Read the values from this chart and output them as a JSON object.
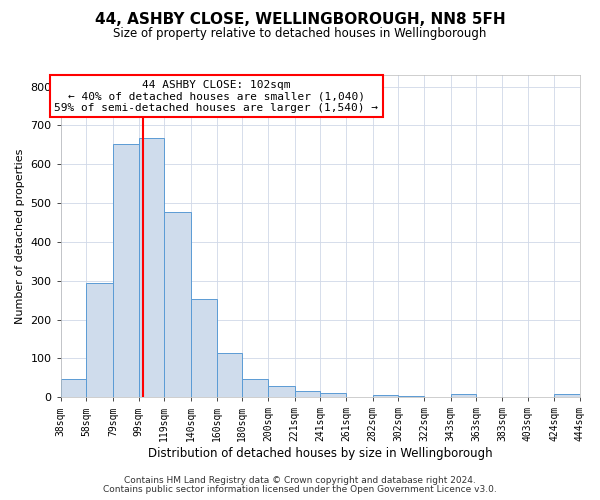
{
  "title": "44, ASHBY CLOSE, WELLINGBOROUGH, NN8 5FH",
  "subtitle": "Size of property relative to detached houses in Wellingborough",
  "xlabel": "Distribution of detached houses by size in Wellingborough",
  "ylabel": "Number of detached properties",
  "footer_line1": "Contains HM Land Registry data © Crown copyright and database right 2024.",
  "footer_line2": "Contains public sector information licensed under the Open Government Licence v3.0.",
  "bin_labels": [
    "38sqm",
    "58sqm",
    "79sqm",
    "99sqm",
    "119sqm",
    "140sqm",
    "160sqm",
    "180sqm",
    "200sqm",
    "221sqm",
    "241sqm",
    "261sqm",
    "282sqm",
    "302sqm",
    "322sqm",
    "343sqm",
    "363sqm",
    "383sqm",
    "403sqm",
    "424sqm",
    "444sqm"
  ],
  "bin_edges": [
    38,
    58,
    79,
    99,
    119,
    140,
    160,
    180,
    200,
    221,
    241,
    261,
    282,
    302,
    322,
    343,
    363,
    383,
    403,
    424,
    444
  ],
  "bar_heights": [
    47,
    293,
    652,
    668,
    478,
    252,
    113,
    48,
    28,
    15,
    10,
    0,
    5,
    3,
    0,
    8,
    0,
    0,
    0,
    7
  ],
  "bar_color": "#cfdcec",
  "bar_edge_color": "#5b9bd5",
  "vline_x": 102,
  "vline_color": "red",
  "annotation_title": "44 ASHBY CLOSE: 102sqm",
  "annotation_line2": "← 40% of detached houses are smaller (1,040)",
  "annotation_line3": "59% of semi-detached houses are larger (1,540) →",
  "annotation_box_color": "white",
  "annotation_box_edge_color": "red",
  "ylim": [
    0,
    830
  ],
  "yticks": [
    0,
    100,
    200,
    300,
    400,
    500,
    600,
    700,
    800
  ],
  "background_color": "#ffffff",
  "plot_bg_color": "#ffffff",
  "grid_color": "#d0d8e8"
}
